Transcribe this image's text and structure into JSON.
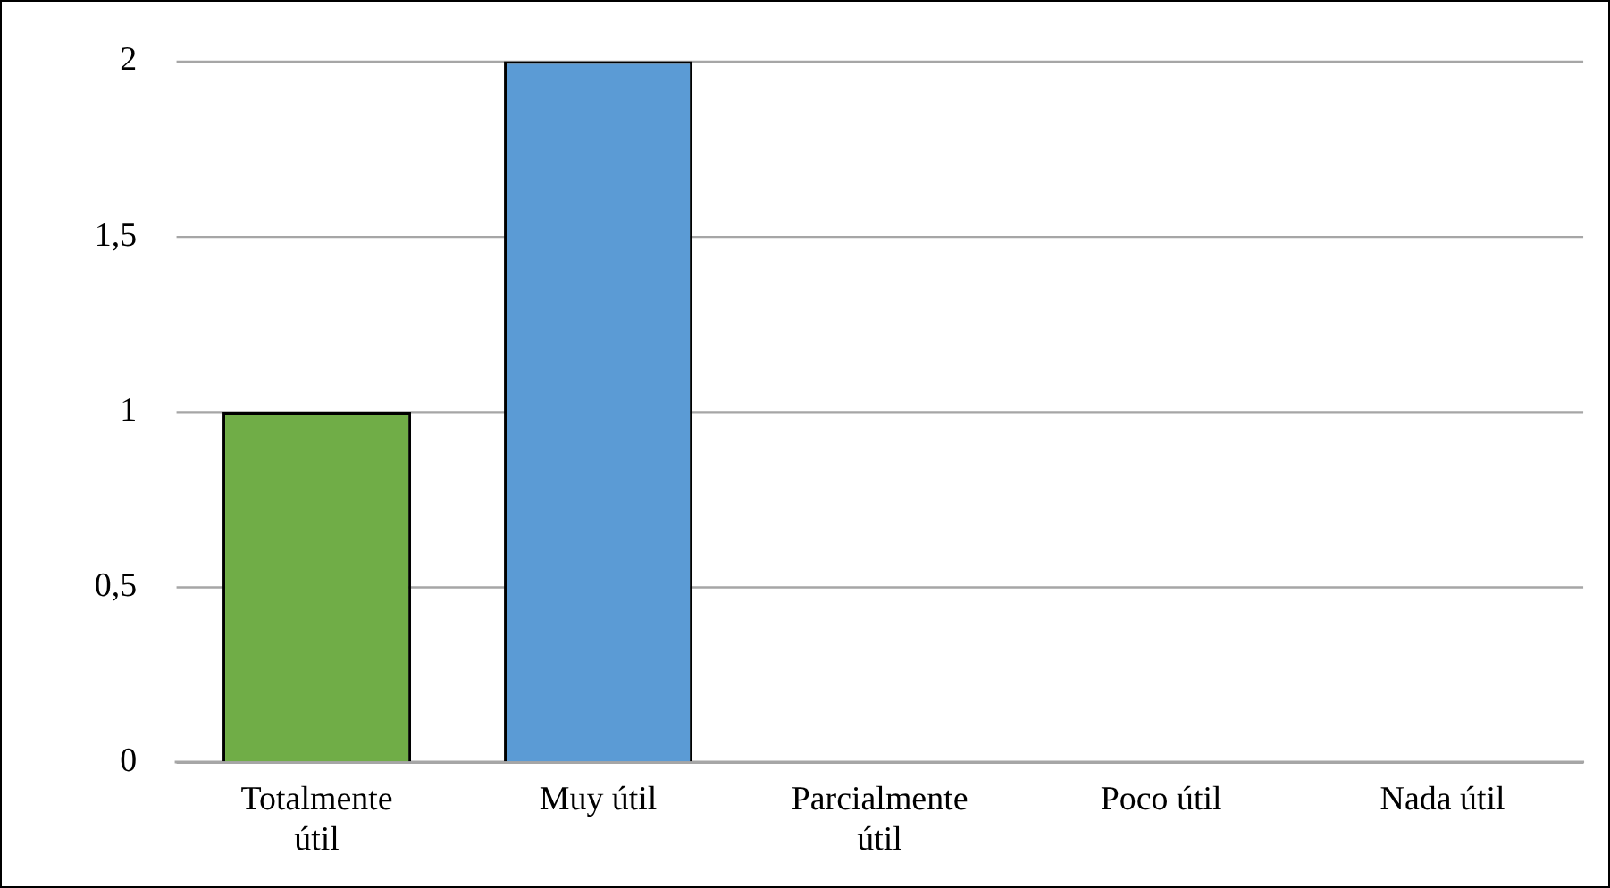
{
  "chart_data": {
    "type": "bar",
    "categories": [
      "Totalmente útil",
      "Muy útil",
      "Parcialmente útil",
      "Poco útil",
      "Nada útil"
    ],
    "values": [
      1,
      2,
      0,
      0,
      0
    ],
    "colors": [
      "#70ad47",
      "#5b9bd5",
      "#5b9bd5",
      "#5b9bd5",
      "#5b9bd5"
    ],
    "ylim": [
      0,
      2
    ],
    "yticks": [
      0,
      {
        "value": 0.5,
        "label": "0,5"
      },
      1,
      {
        "value": 1.5,
        "label": "1,5"
      },
      2
    ],
    "grid": "y",
    "legend": false
  }
}
